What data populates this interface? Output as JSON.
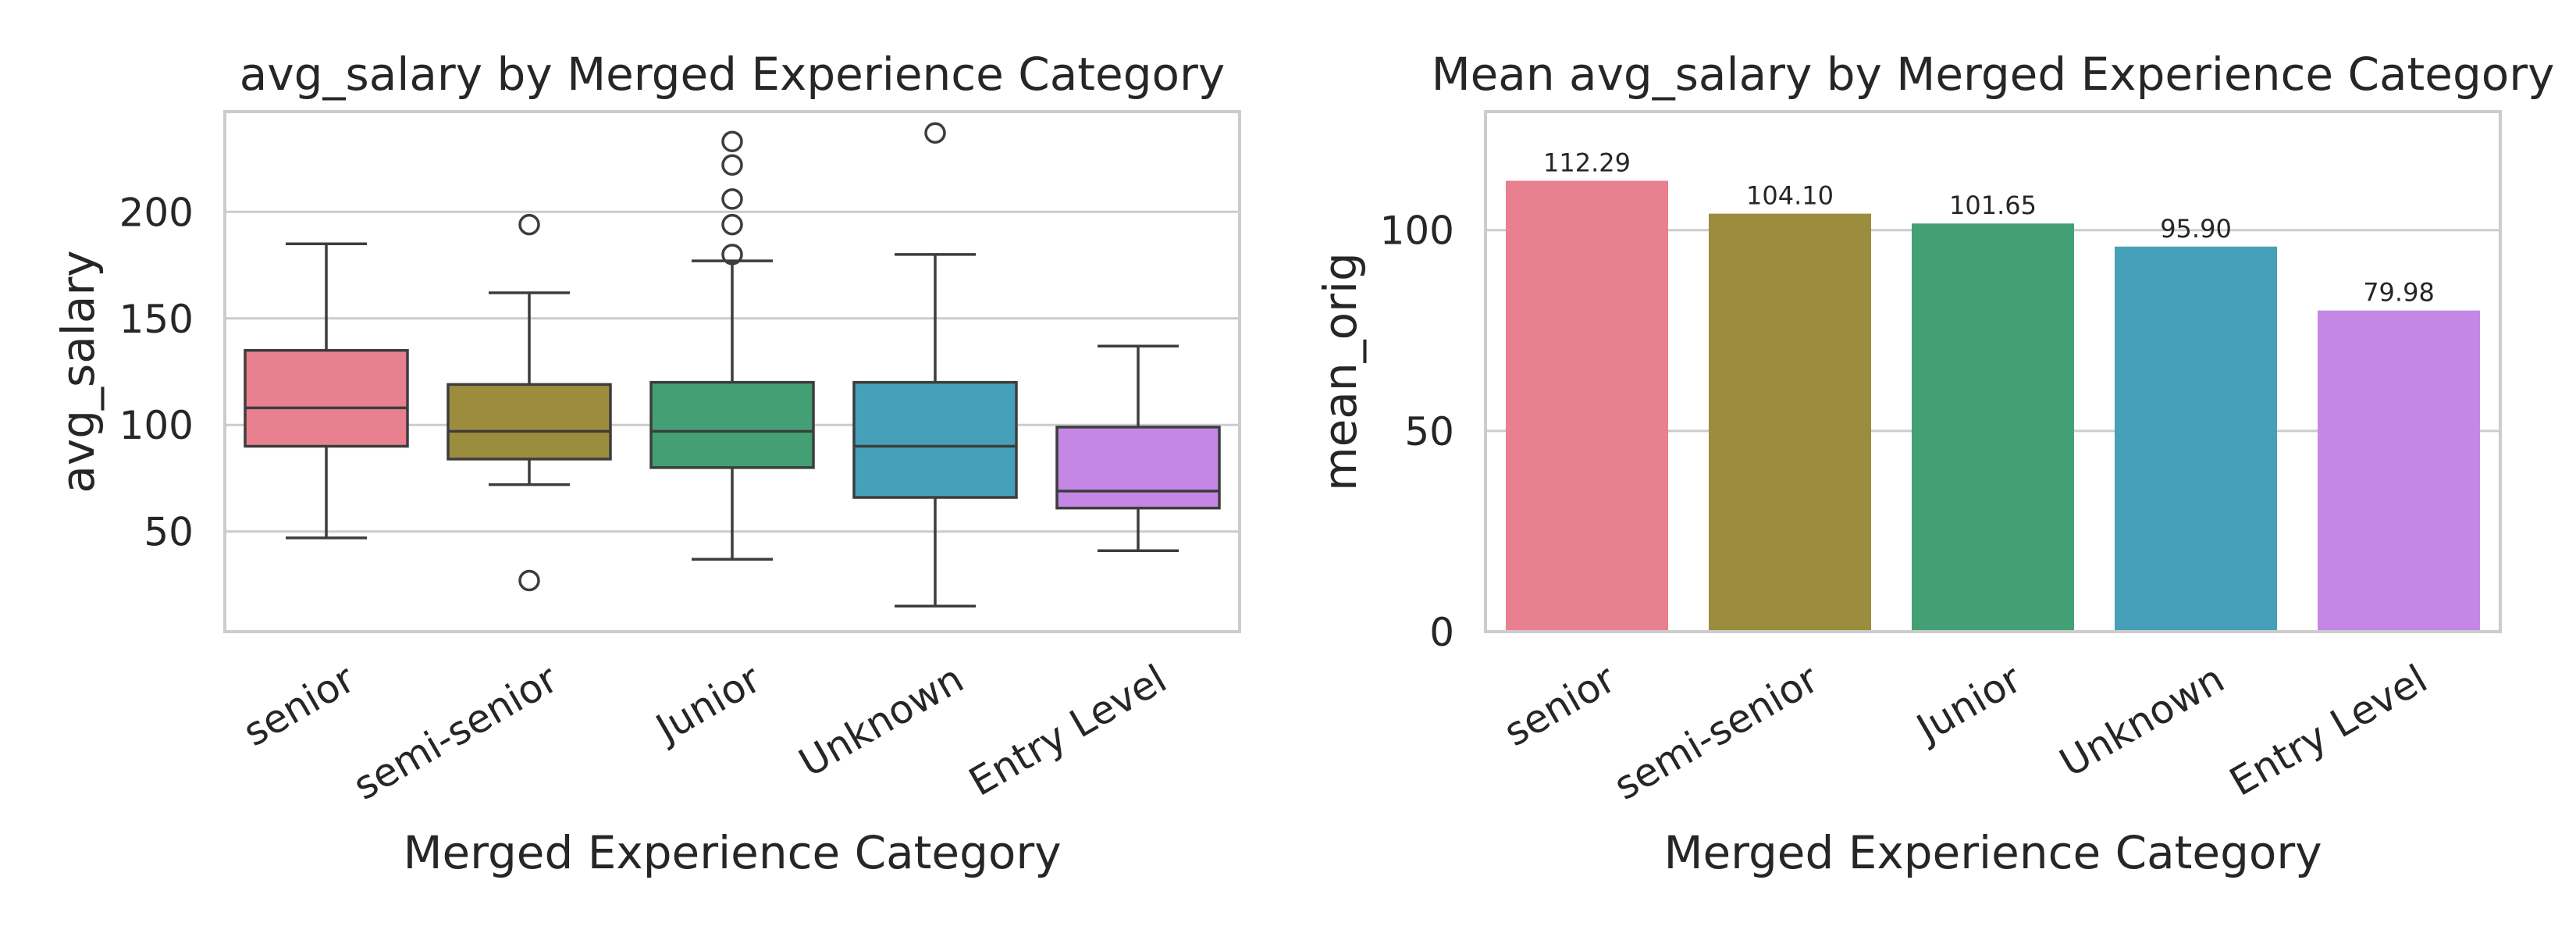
{
  "chart_data": [
    {
      "type": "box",
      "title": "avg_salary by Merged Experience Category",
      "xlabel": "Merged Experience Category",
      "ylabel": "avg_salary",
      "ylim": [
        3,
        247
      ],
      "yticks": [
        50,
        100,
        150,
        200
      ],
      "grid": true,
      "categories": [
        "senior",
        "semi-senior",
        "Junior",
        "Unknown",
        "Entry Level"
      ],
      "colors": [
        "#e8808f",
        "#9c8d3e",
        "#43a074",
        "#47a0ba",
        "#c587e6"
      ],
      "boxes": [
        {
          "whislo": 47,
          "q1": 90,
          "med": 108,
          "q3": 135,
          "whishi": 185,
          "fliers": []
        },
        {
          "whislo": 72,
          "q1": 84,
          "med": 97,
          "q3": 119,
          "whishi": 162,
          "fliers": [
            194,
            27
          ]
        },
        {
          "whislo": 37,
          "q1": 80,
          "med": 97,
          "q3": 120,
          "whishi": 177,
          "fliers": [
            180,
            194,
            206,
            222,
            233
          ]
        },
        {
          "whislo": 15,
          "q1": 66,
          "med": 90,
          "q3": 120,
          "whishi": 180,
          "fliers": [
            237
          ]
        },
        {
          "whislo": 41,
          "q1": 61,
          "med": 69,
          "q3": 99,
          "whishi": 137,
          "fliers": []
        }
      ]
    },
    {
      "type": "bar",
      "title": "Mean avg_salary by Merged Experience Category",
      "xlabel": "Merged Experience Category",
      "ylabel": "mean_orig",
      "ylim": [
        0,
        129.5
      ],
      "yticks": [
        0,
        50,
        100
      ],
      "grid": true,
      "categories": [
        "senior",
        "semi-senior",
        "Junior",
        "Unknown",
        "Entry Level"
      ],
      "colors": [
        "#e8808f",
        "#9c8d3e",
        "#43a074",
        "#47a0ba",
        "#c587e6"
      ],
      "values": [
        112.29,
        104.1,
        101.65,
        95.9,
        79.98
      ],
      "value_labels": [
        "112.29",
        "104.10",
        "101.65",
        "95.90",
        "79.98"
      ]
    }
  ]
}
